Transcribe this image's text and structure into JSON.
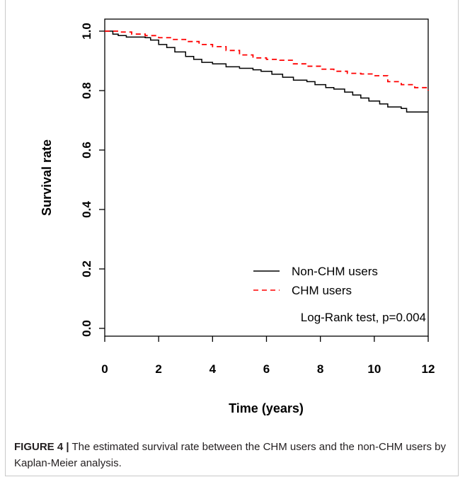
{
  "chart_data": {
    "type": "line",
    "xlabel": "Time (years)",
    "ylabel": "Survival rate",
    "xlim": [
      0,
      12
    ],
    "ylim": [
      0,
      1
    ],
    "x_ticks": [
      "0",
      "2",
      "4",
      "6",
      "8",
      "10",
      "12"
    ],
    "y_ticks": [
      "0.0",
      "0.2",
      "0.4",
      "0.6",
      "0.8",
      "1.0"
    ],
    "grid": false,
    "legend_position": "bottom-right",
    "annotation": "Log-Rank test, p=0.004",
    "series": [
      {
        "name": "Non-CHM users",
        "color": "#000000",
        "style": "solid",
        "x": [
          0,
          0.3,
          0.5,
          0.8,
          1.5,
          1.7,
          2.0,
          2.3,
          2.6,
          3.0,
          3.3,
          3.6,
          4.0,
          4.5,
          5.0,
          5.5,
          5.8,
          6.2,
          6.6,
          7.0,
          7.5,
          7.8,
          8.2,
          8.5,
          8.9,
          9.2,
          9.5,
          9.8,
          10.2,
          10.5,
          11.0,
          11.2,
          12.0
        ],
        "y": [
          1.0,
          0.99,
          0.985,
          0.98,
          0.978,
          0.97,
          0.955,
          0.945,
          0.93,
          0.915,
          0.905,
          0.895,
          0.89,
          0.88,
          0.875,
          0.87,
          0.865,
          0.855,
          0.845,
          0.835,
          0.83,
          0.82,
          0.81,
          0.805,
          0.795,
          0.785,
          0.775,
          0.765,
          0.755,
          0.745,
          0.74,
          0.728,
          0.728
        ]
      },
      {
        "name": "CHM users",
        "color": "#ff0000",
        "style": "dashed",
        "x": [
          0,
          0.5,
          1.0,
          1.5,
          2.0,
          2.5,
          3.0,
          3.5,
          4.0,
          4.5,
          5.0,
          5.5,
          6.0,
          6.5,
          7.0,
          7.5,
          8.0,
          8.5,
          9.0,
          9.5,
          10.0,
          10.5,
          11.0,
          11.5,
          12.0
        ],
        "y": [
          1.0,
          0.997,
          0.99,
          0.985,
          0.978,
          0.972,
          0.965,
          0.955,
          0.948,
          0.935,
          0.92,
          0.91,
          0.905,
          0.902,
          0.89,
          0.882,
          0.872,
          0.865,
          0.858,
          0.856,
          0.85,
          0.83,
          0.82,
          0.81,
          0.8
        ]
      }
    ]
  },
  "caption": {
    "figure_label": "FIGURE 4 |",
    "text": " The estimated survival rate between the CHM users and the non-CHM users by Kaplan-Meier analysis."
  }
}
